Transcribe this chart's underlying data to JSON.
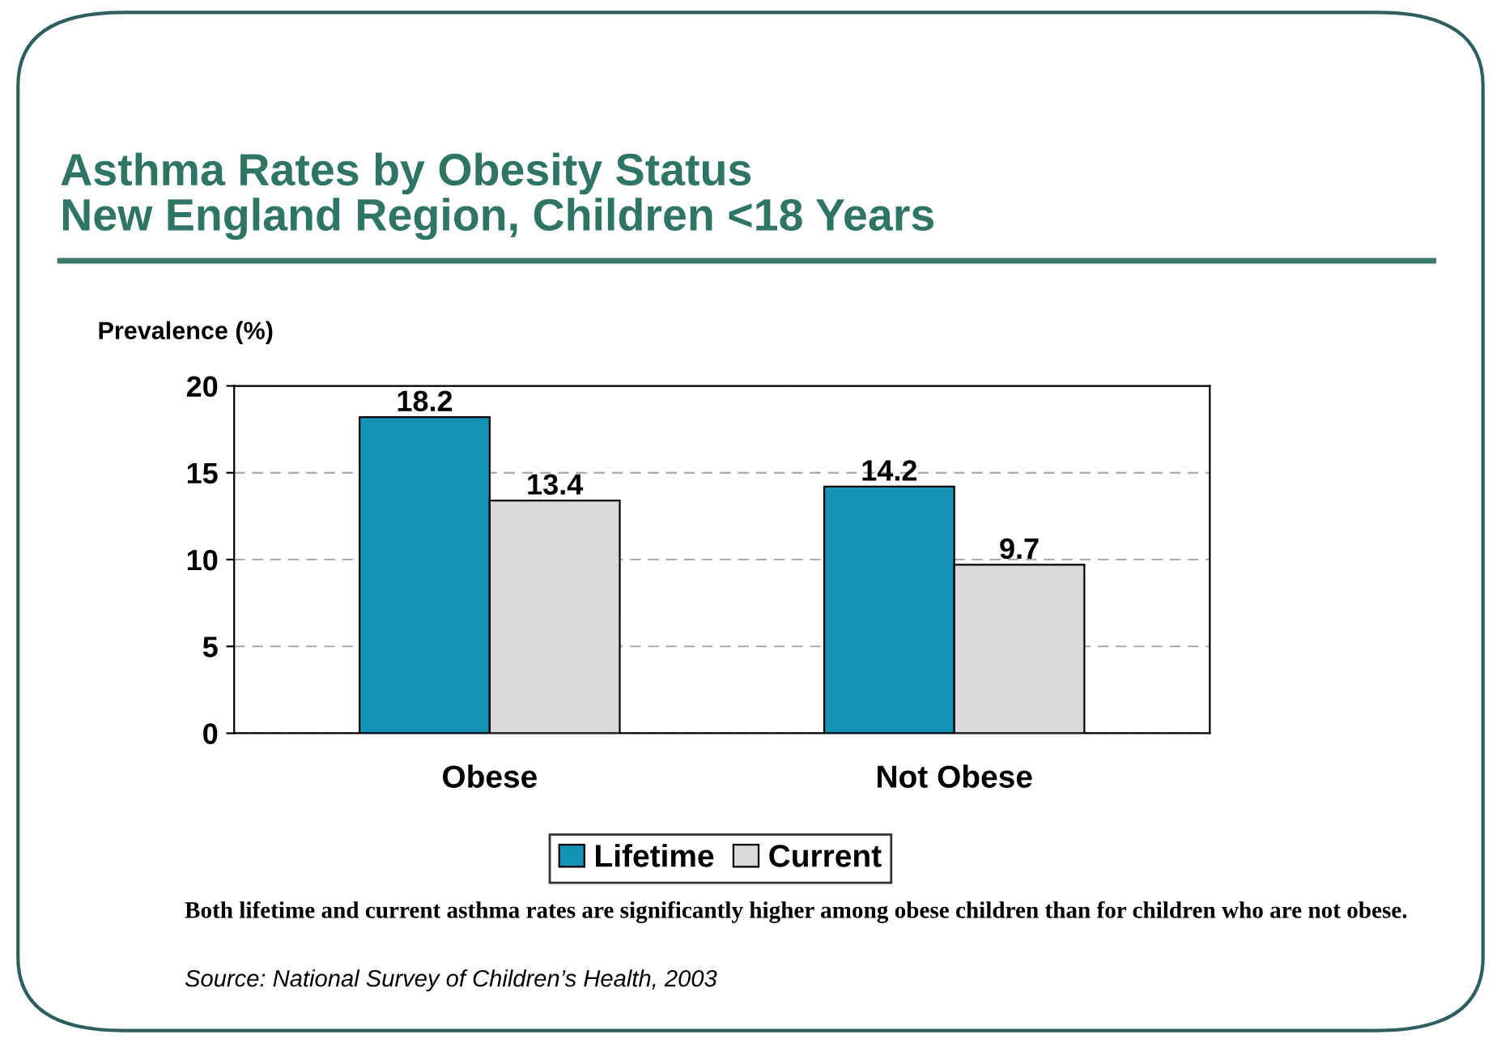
{
  "chart_data": {
    "type": "bar",
    "title": "Asthma Rates by Obesity Status\nNew England Region, Children <18 Years",
    "ylabel": "Prevalence (%)",
    "categories": [
      "Obese",
      "Not Obese"
    ],
    "series": [
      {
        "name": "Lifetime",
        "color": "#1592b8",
        "values": [
          18.2,
          14.2
        ]
      },
      {
        "name": "Current",
        "color": "#d9d9d9",
        "values": [
          13.4,
          9.7
        ]
      }
    ],
    "ylim": [
      0,
      20
    ],
    "yticks": [
      0,
      5,
      10,
      15,
      20
    ],
    "grid": "y",
    "legend": "bottom",
    "data_labels": true,
    "annotations": [
      "Both lifetime and current asthma rates are significantly higher among obese children than for children who are not obese.",
      "Source: National Survey of Children’s Health, 2003"
    ]
  }
}
